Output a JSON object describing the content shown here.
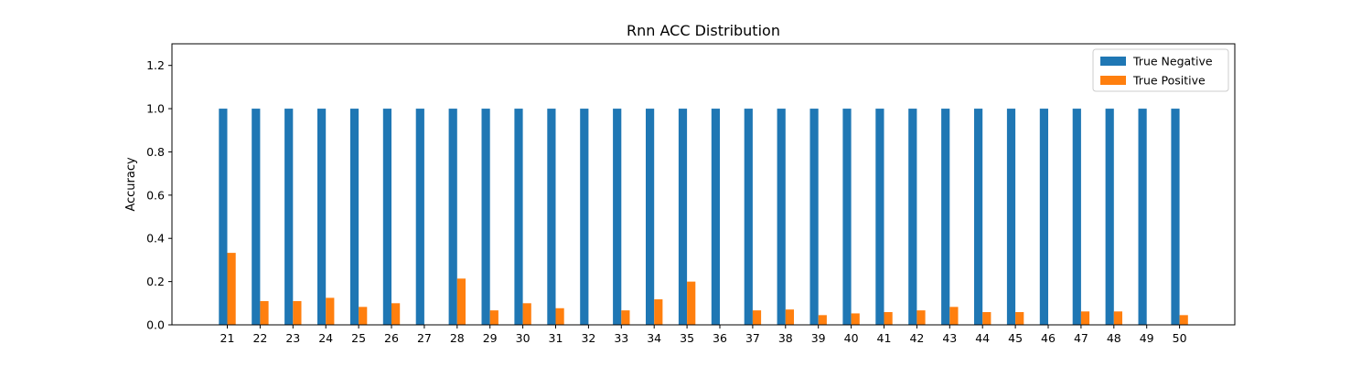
{
  "chart_data": {
    "type": "bar",
    "title": "Rnn ACC Distribution",
    "xlabel": "",
    "ylabel": "Accuracy",
    "ylim": [
      0,
      1.3
    ],
    "yticks": [
      "0.0",
      "0.2",
      "0.4",
      "0.6",
      "0.8",
      "1.0",
      "1.2"
    ],
    "grid": false,
    "legend_position": "top-right",
    "categories": [
      "21",
      "22",
      "23",
      "24",
      "25",
      "26",
      "27",
      "28",
      "29",
      "30",
      "31",
      "32",
      "33",
      "34",
      "35",
      "36",
      "37",
      "38",
      "39",
      "40",
      "41",
      "42",
      "43",
      "44",
      "45",
      "46",
      "47",
      "48",
      "49",
      "50"
    ],
    "series": [
      {
        "name": "True Negative",
        "color": "#1f77b4",
        "values": [
          1.0,
          1.0,
          1.0,
          1.0,
          1.0,
          1.0,
          1.0,
          1.0,
          1.0,
          1.0,
          1.0,
          1.0,
          1.0,
          1.0,
          1.0,
          1.0,
          1.0,
          1.0,
          1.0,
          1.0,
          1.0,
          1.0,
          1.0,
          1.0,
          1.0,
          1.0,
          1.0,
          1.0,
          1.0,
          1.0
        ]
      },
      {
        "name": "True Positive",
        "color": "#ff7f0e",
        "values": [
          0.333,
          0.11,
          0.11,
          0.125,
          0.083,
          0.1,
          0.0,
          0.214,
          0.067,
          0.1,
          0.077,
          0.0,
          0.067,
          0.118,
          0.2,
          0.0,
          0.067,
          0.071,
          0.045,
          0.053,
          0.059,
          0.067,
          0.083,
          0.059,
          0.059,
          0.0,
          0.062,
          0.062,
          0.0,
          0.045
        ]
      }
    ]
  }
}
